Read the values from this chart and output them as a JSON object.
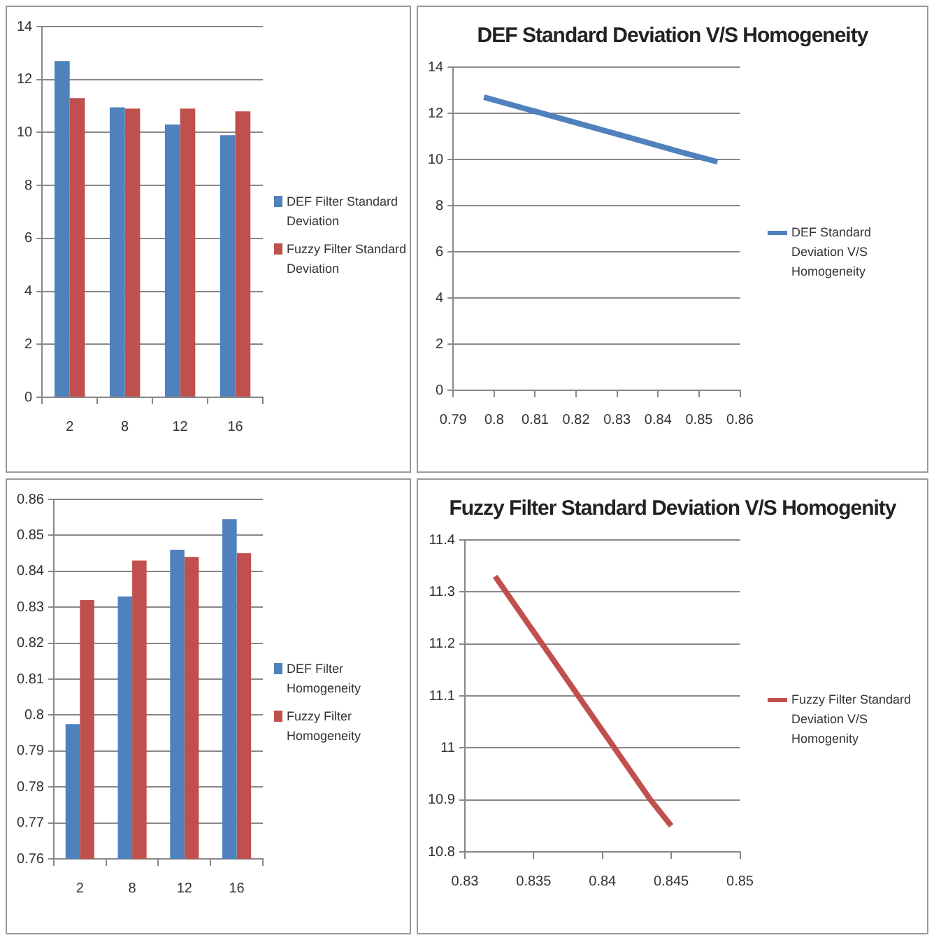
{
  "chart_data": [
    {
      "type": "bar",
      "categories": [
        "2",
        "8",
        "12",
        "16"
      ],
      "series": [
        {
          "name": "DEF Filter Standard Deviation",
          "color": "#4f81bd",
          "values": [
            12.7,
            10.95,
            10.3,
            9.9
          ]
        },
        {
          "name": "Fuzzy Filter Standard Deviation",
          "color": "#c0504d",
          "values": [
            11.3,
            10.9,
            10.9,
            10.8
          ]
        }
      ],
      "ylim": [
        0,
        14
      ],
      "yticks": [
        0,
        2,
        4,
        6,
        8,
        10,
        12,
        14
      ],
      "grid": "y",
      "legend": "right"
    },
    {
      "type": "line",
      "title": "DEF Standard Deviation V/S Homogeneity",
      "series": [
        {
          "name": "DEF Standard Deviation V/S Homogeneity",
          "color": "#4f81bd",
          "x": [
            0.7975,
            0.833,
            0.846,
            0.8545
          ],
          "values": [
            12.7,
            10.95,
            10.3,
            9.9
          ]
        }
      ],
      "xlim": [
        0.79,
        0.86
      ],
      "xticks": [
        0.79,
        0.8,
        0.81,
        0.82,
        0.83,
        0.84,
        0.85,
        0.86
      ],
      "ylim": [
        0,
        14
      ],
      "yticks": [
        0,
        2,
        4,
        6,
        8,
        10,
        12,
        14
      ],
      "grid": "y",
      "legend": "right",
      "marker": "none"
    },
    {
      "type": "bar",
      "categories": [
        "2",
        "8",
        "12",
        "16"
      ],
      "series": [
        {
          "name": "DEF Filter Homogeneity",
          "color": "#4f81bd",
          "values": [
            0.7975,
            0.833,
            0.846,
            0.8545
          ]
        },
        {
          "name": "Fuzzy Filter Homogeneity",
          "color": "#c0504d",
          "values": [
            0.832,
            0.843,
            0.844,
            0.845
          ]
        }
      ],
      "ylim": [
        0.76,
        0.86
      ],
      "yticks": [
        0.76,
        0.77,
        0.78,
        0.79,
        0.8,
        0.81,
        0.82,
        0.83,
        0.84,
        0.85,
        0.86
      ],
      "grid": "y",
      "legend": "right"
    },
    {
      "type": "line",
      "title": "Fuzzy Filter Standard Deviation V/S Homogenity",
      "series": [
        {
          "name": "Fuzzy Filter Standard Deviation V/S Homogenity",
          "color": "#c0504d",
          "x": [
            0.8322,
            0.8435,
            0.845
          ],
          "values": [
            11.33,
            10.9,
            10.85
          ]
        }
      ],
      "xlim": [
        0.83,
        0.85
      ],
      "xticks": [
        0.83,
        0.835,
        0.84,
        0.845,
        0.85
      ],
      "ylim": [
        10.8,
        11.4
      ],
      "yticks": [
        10.8,
        10.9,
        11,
        11.1,
        11.2,
        11.3,
        11.4
      ],
      "grid": "y",
      "legend": "right",
      "marker": "none"
    }
  ]
}
